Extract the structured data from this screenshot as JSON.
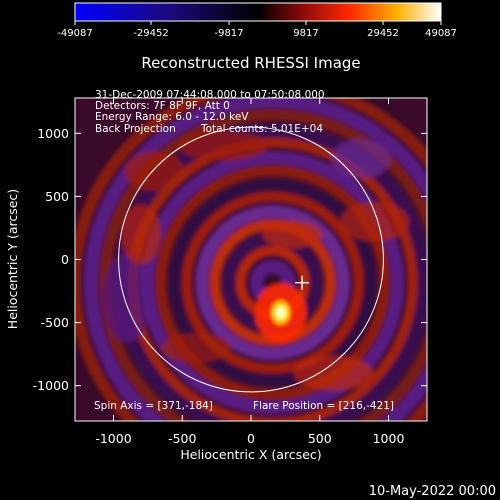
{
  "chart_data": {
    "type": "heatmap",
    "title": "Reconstructed RHESSI Image",
    "xlabel": "Heliocentric X (arcsec)",
    "ylabel": "Heliocentric Y (arcsec)",
    "xlim": [
      -1280,
      1280
    ],
    "ylim": [
      -1280,
      1280
    ],
    "xticks": [
      -1000,
      -500,
      0,
      500,
      1000
    ],
    "yticks": [
      -1000,
      -500,
      0,
      500,
      1000
    ],
    "colorbar": {
      "ticks": [
        -49087,
        -29452,
        -9817,
        9817,
        29452,
        49087
      ],
      "min": -49087,
      "max": 49087
    },
    "annotations": [
      "31-Dec-2009 07:44:08.000 to 07:50:08.000",
      "Detectors: 7F 8F 9F, Att 0",
      "Energy Range: 6.0 - 12.0 keV",
      "Back Projection",
      "Total counts: 5.01E+04"
    ],
    "footer_left": "Spin Axis = [371,-184]",
    "footer_right": "Flare Position = [216,-421]",
    "solar_disk_radius": 963,
    "spin_axis": [
      371,
      -184
    ],
    "flare_position": [
      216,
      -421
    ],
    "colors": {
      "disk_circle": "#ffffff",
      "background": "#000000"
    }
  },
  "date_stamp": "10-May-2022 00:00"
}
